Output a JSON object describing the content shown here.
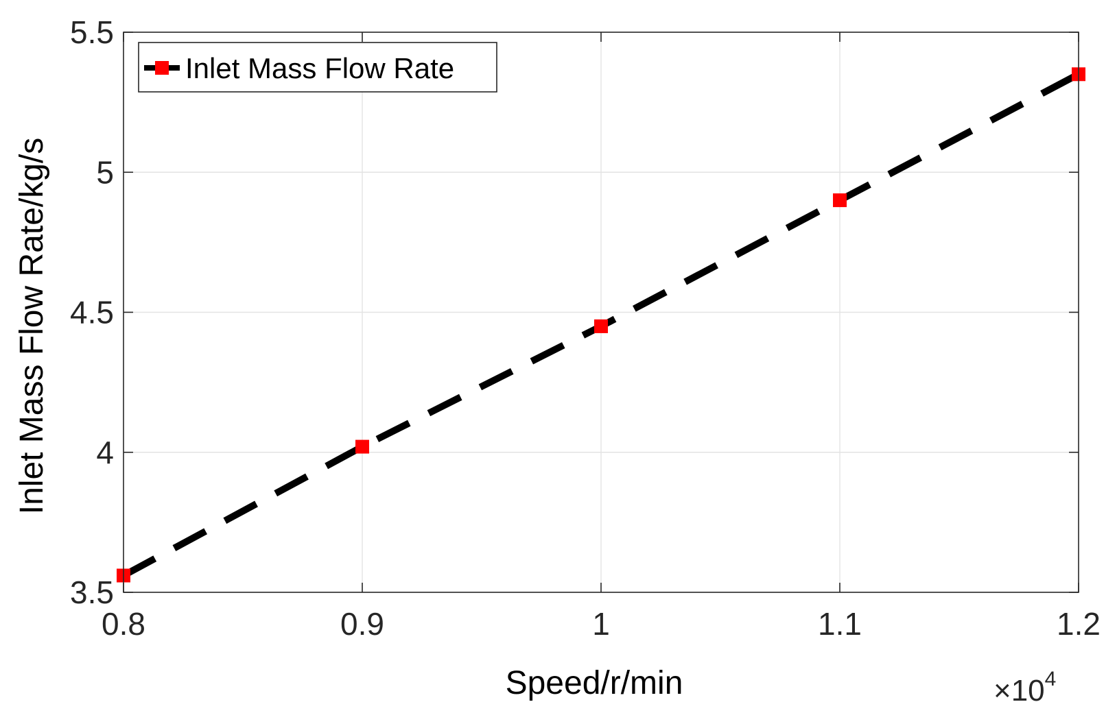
{
  "chart_data": {
    "type": "line",
    "xlabel": "Speed/r/min",
    "ylabel": "Inlet Mass Flow Rate/kg/s",
    "x_multiplier": {
      "base": "×10",
      "exponent": "4"
    },
    "xlim": [
      0.8,
      1.2
    ],
    "ylim": [
      3.5,
      5.5
    ],
    "xticks": [
      0.8,
      0.9,
      1.0,
      1.1,
      1.2
    ],
    "xtick_labels": [
      "0.8",
      "0.9",
      "1",
      "1.1",
      "1.2"
    ],
    "yticks": [
      3.5,
      4.0,
      4.5,
      5.0,
      5.5
    ],
    "ytick_labels": [
      "3.5",
      "4",
      "4.5",
      "5",
      "5.5"
    ],
    "grid": true,
    "legend_position": "top-left",
    "series": [
      {
        "name": "Inlet Mass Flow Rate",
        "x": [
          0.8,
          0.9,
          1.0,
          1.1,
          1.2
        ],
        "values": [
          3.56,
          4.02,
          4.45,
          4.9,
          5.35
        ],
        "line_color": "#000000",
        "line_style": "dashed",
        "marker": "square",
        "marker_color": "#ff0000"
      }
    ]
  }
}
